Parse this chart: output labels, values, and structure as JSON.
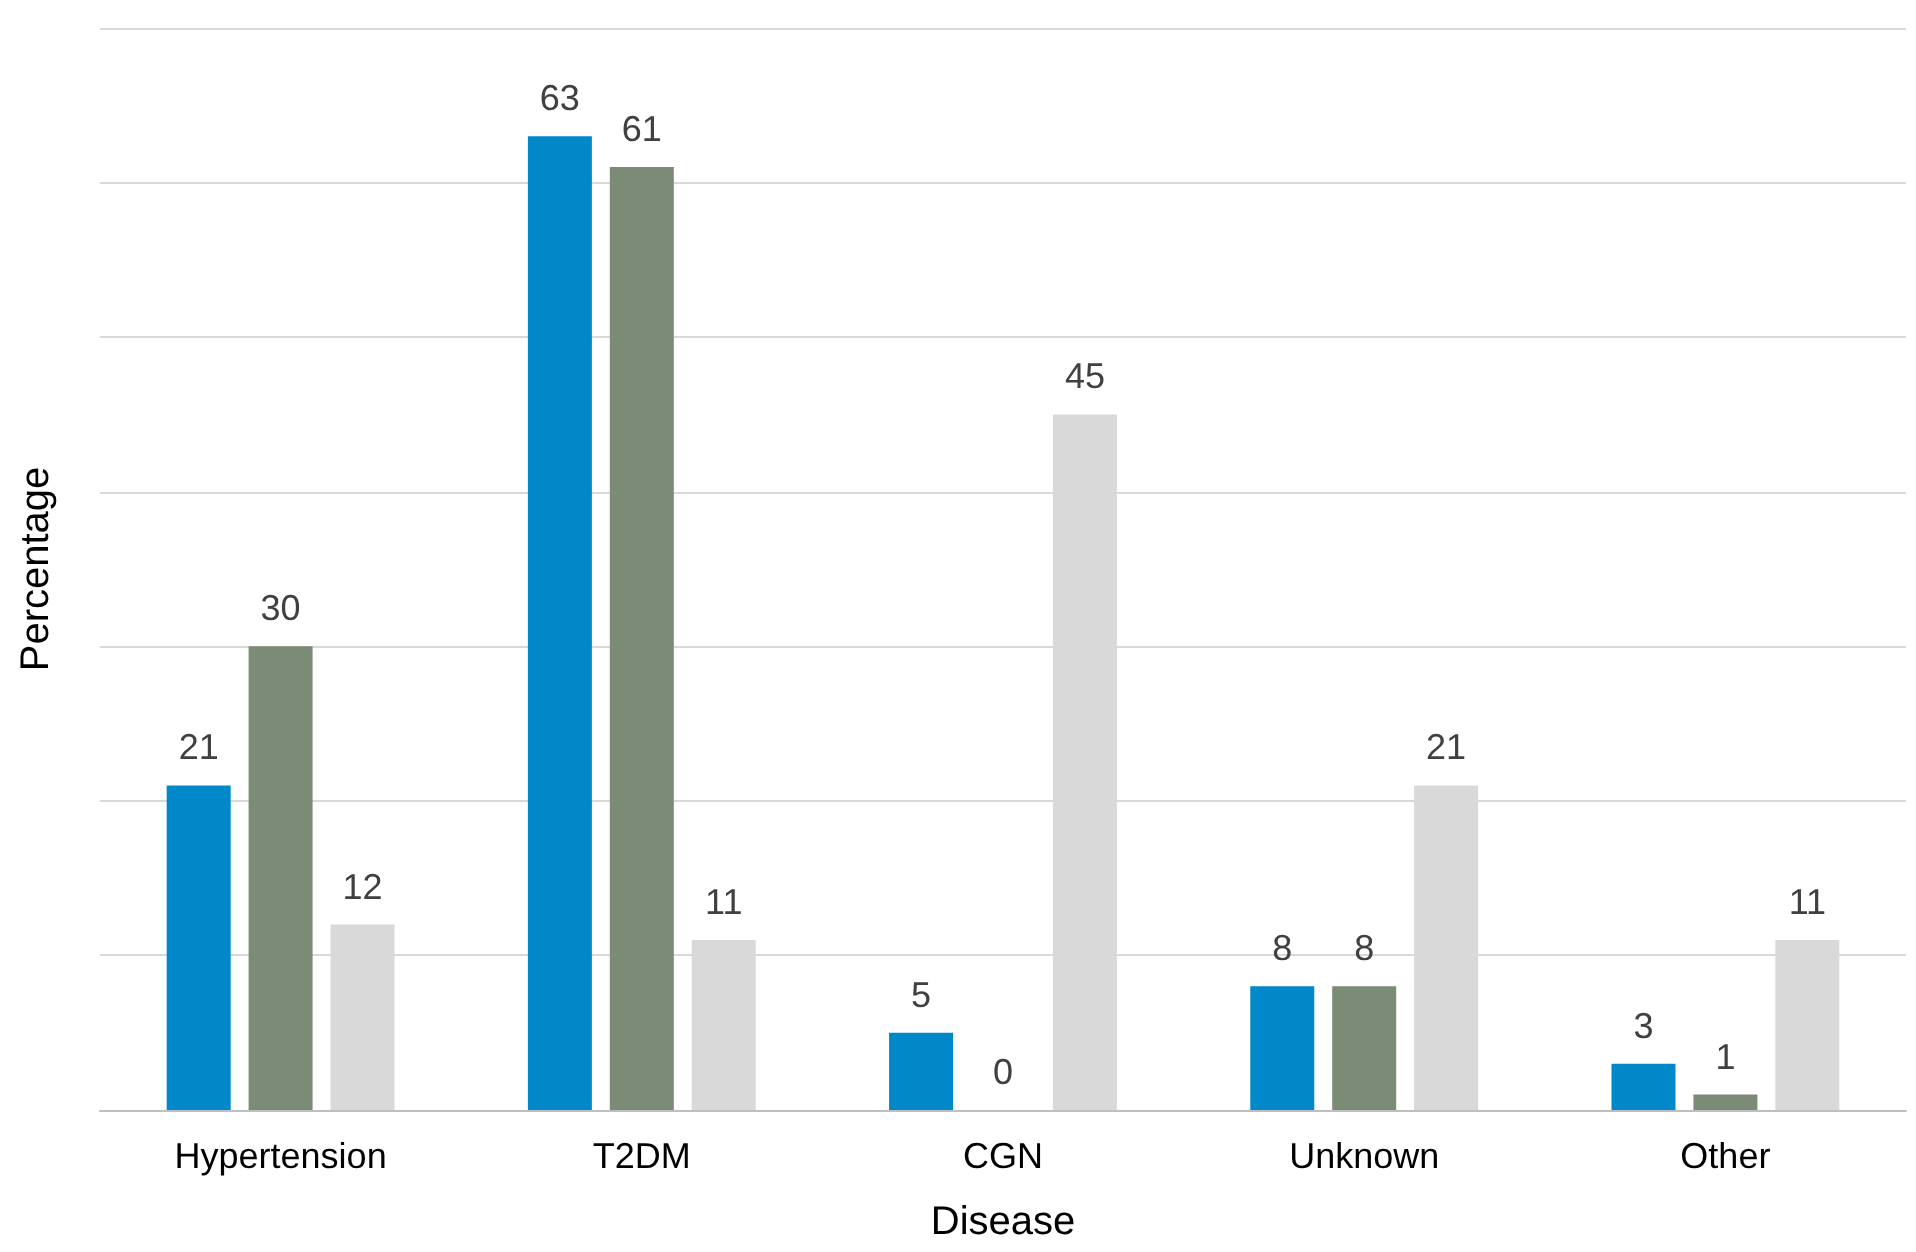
{
  "chart_data": {
    "type": "bar",
    "xlabel": "Disease",
    "ylabel": "Percentage",
    "categories": [
      "Hypertension",
      "T2DM",
      "CGN",
      "Unknown",
      "Other"
    ],
    "series": [
      {
        "color": "#0088c9",
        "values": [
          21,
          63,
          5,
          8,
          3
        ]
      },
      {
        "color": "#7b8b75",
        "values": [
          30,
          61,
          0,
          8,
          1
        ]
      },
      {
        "color": "#d9d9d9",
        "values": [
          12,
          11,
          45,
          21,
          11
        ]
      }
    ],
    "ylim": [
      0,
      70
    ],
    "yticks": [
      {
        "value": 0,
        "label": null
      },
      {
        "value": 10,
        "label": null
      },
      {
        "value": 20,
        "label": null
      },
      {
        "value": 30,
        "label": null
      },
      {
        "value": 40,
        "label": null
      },
      {
        "value": 50,
        "label": null
      },
      {
        "value": 60,
        "label": null
      },
      {
        "value": 70,
        "label": null
      }
    ],
    "tick_labels": "x",
    "grid": "y",
    "data_labels": true
  }
}
